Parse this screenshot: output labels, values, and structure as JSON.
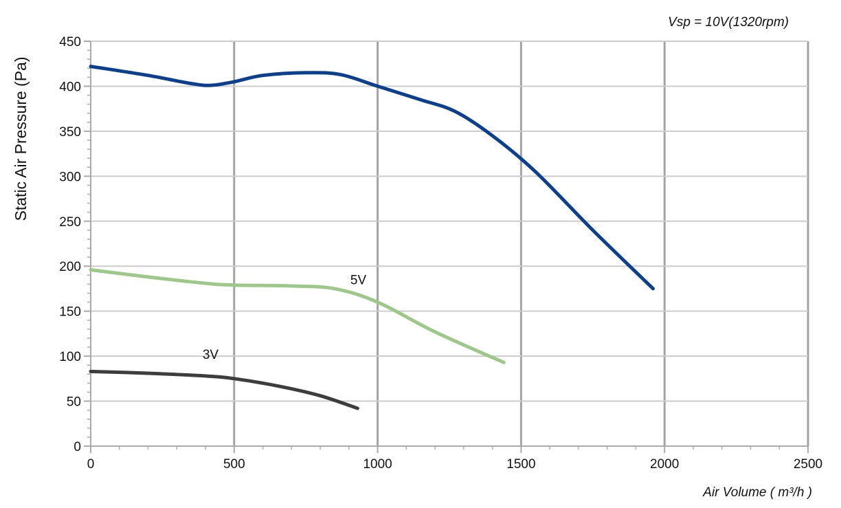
{
  "chart_data": {
    "type": "line",
    "annotation": "Vsp = 10V(1320rpm)",
    "xlabel": "Air Volume ( m³/h )",
    "ylabel": "Static Air Pressure  (Pa)",
    "xlim": [
      0,
      2500
    ],
    "ylim": [
      0,
      450
    ],
    "xticks": [
      0,
      500,
      1000,
      1500,
      2000,
      2500
    ],
    "yticks": [
      0,
      50,
      100,
      150,
      200,
      250,
      300,
      350,
      400,
      450
    ],
    "grid": true,
    "series": [
      {
        "color": "#0d3f8f",
        "x": [
          0,
          200,
          350,
          420,
          500,
          600,
          750,
          870,
          1000,
          1150,
          1270,
          1400,
          1550,
          1750,
          1960
        ],
        "y": [
          422,
          412,
          403,
          401,
          405,
          412,
          415,
          413,
          400,
          385,
          372,
          345,
          305,
          240,
          175
        ]
      },
      {
        "name": "5V",
        "color": "#9dc88a",
        "x": [
          0,
          200,
          400,
          500,
          700,
          850,
          1000,
          1200,
          1440
        ],
        "y": [
          196,
          188,
          181,
          179,
          178,
          175,
          160,
          127,
          93
        ]
      },
      {
        "name": "3V",
        "color": "#3d3d3d",
        "x": [
          0,
          200,
          400,
          500,
          650,
          800,
          930
        ],
        "y": [
          83,
          81,
          78,
          75,
          67,
          56,
          42
        ]
      }
    ],
    "series_label_positions": [
      {
        "series": 1,
        "x": 905,
        "y": 180
      },
      {
        "series": 2,
        "x": 390,
        "y": 97
      }
    ]
  }
}
